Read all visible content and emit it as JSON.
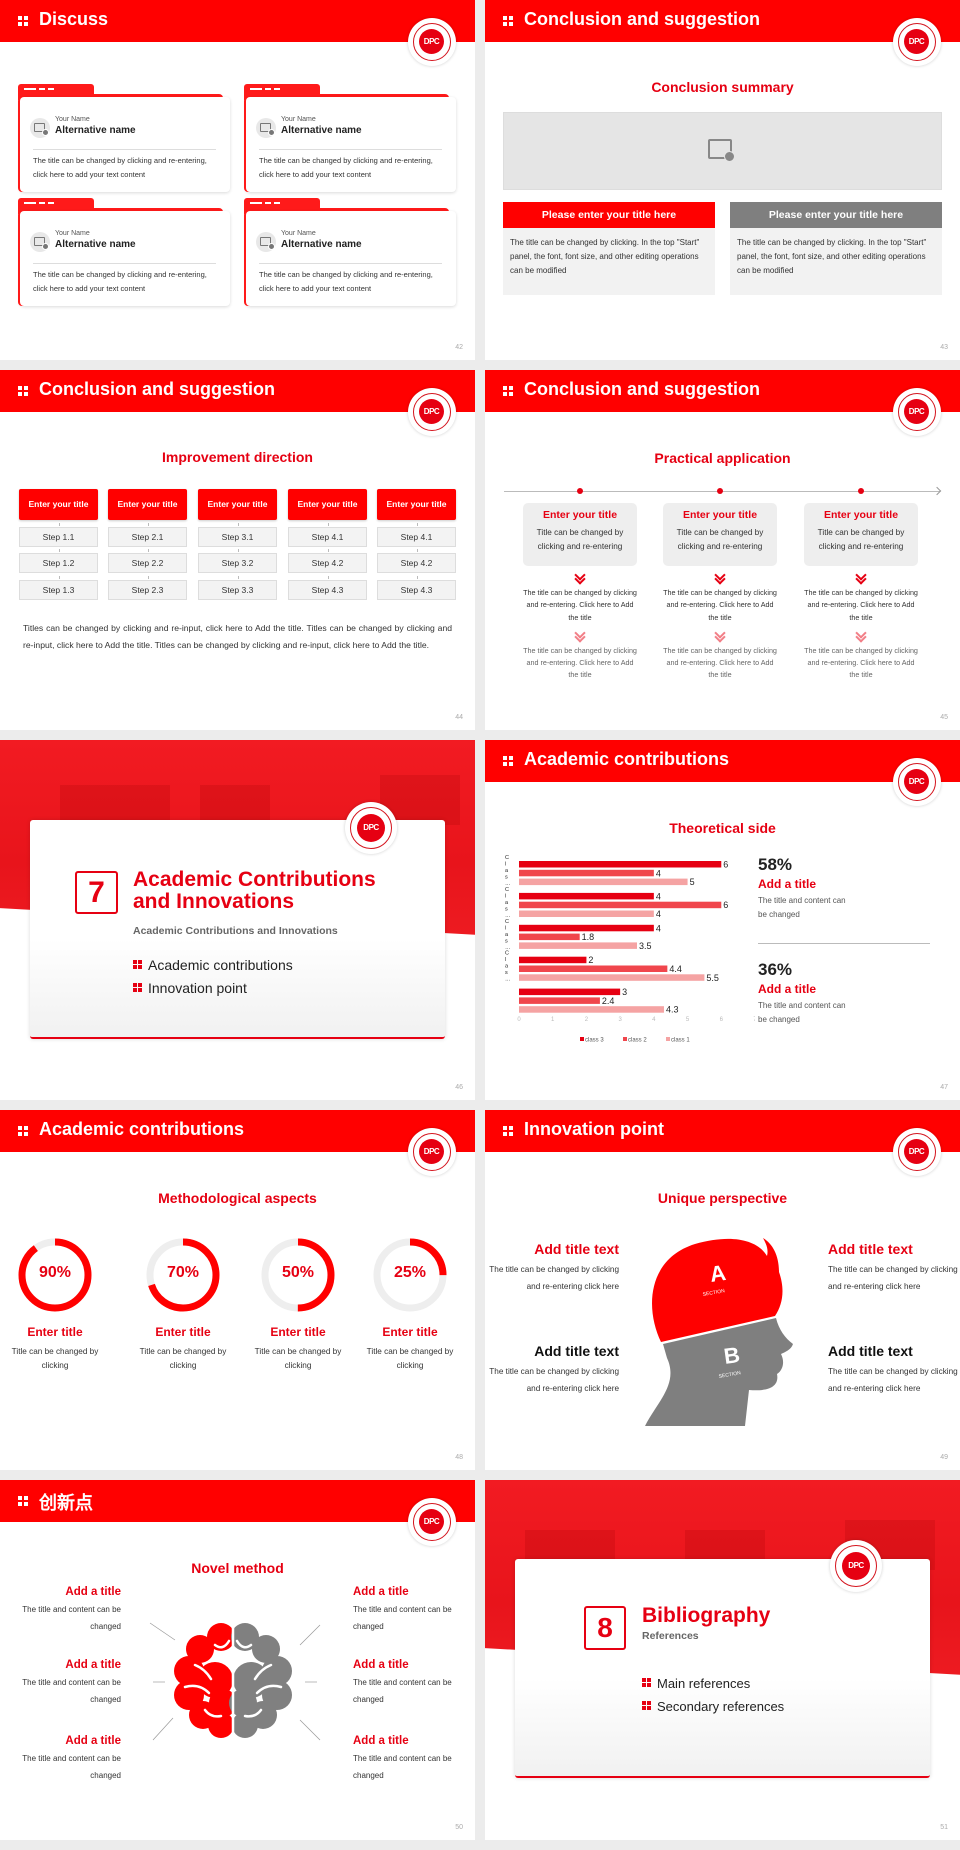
{
  "colors": {
    "accent": "#ff0000",
    "accent_dark": "#e60012",
    "gray": "#808080",
    "background": "#ececec"
  },
  "logo": {
    "text": "DPC",
    "ring_text": "DONG PUSAN COLLEGE"
  },
  "slides": [
    {
      "page": "42",
      "title": "Discuss",
      "cards": [
        {
          "label": "Your Name",
          "name": "Alternative name",
          "text": "The title can be changed by clicking and re-entering, click here to add your text content"
        },
        {
          "label": "Your Name",
          "name": "Alternative name",
          "text": "The title can be changed by clicking and re-entering, click here to add your text content"
        },
        {
          "label": "Your Name",
          "name": "Alternative name",
          "text": "The title can be changed by clicking and re-entering, click here to add your text content"
        },
        {
          "label": "Your Name",
          "name": "Alternative name",
          "text": "The title can be changed by clicking and re-entering, click here to add your text content"
        }
      ]
    },
    {
      "page": "43",
      "title": "Conclusion and suggestion",
      "heading": "Conclusion summary",
      "boxes": [
        {
          "title": "Please enter your title here",
          "text": "The title can be changed by clicking. In the top \"Start\" panel, the font, font size, and other editing operations can be modified"
        },
        {
          "title": "Please enter your title here",
          "text": "The title can be changed by clicking. In the top \"Start\" panel, the font, font size, and other editing operations can be modified"
        }
      ]
    },
    {
      "page": "44",
      "title": "Conclusion and suggestion",
      "heading": "Improvement direction",
      "columns": [
        {
          "title": "Enter your title",
          "steps": [
            "Step 1.1",
            "Step 1.2",
            "Step 1.3"
          ]
        },
        {
          "title": "Enter your title",
          "steps": [
            "Step 2.1",
            "Step 2.2",
            "Step 2.3"
          ]
        },
        {
          "title": "Enter your title",
          "steps": [
            "Step 3.1",
            "Step 3.2",
            "Step 3.3"
          ]
        },
        {
          "title": "Enter your title",
          "steps": [
            "Step 4.1",
            "Step 4.2",
            "Step 4.3"
          ]
        },
        {
          "title": "Enter your title",
          "steps": [
            "Step 4.1",
            "Step 4.2",
            "Step 4.3"
          ]
        }
      ],
      "paragraph": "Titles can be changed by clicking and re-input, click here to Add the title. Titles can be changed by clicking and re-input, click here to Add the title. Titles can be changed by clicking and re-input, click here to Add the title."
    },
    {
      "page": "45",
      "title": "Conclusion and suggestion",
      "heading": "Practical application",
      "columns": [
        {
          "title": "Enter your title",
          "desc": "Title can be changed by clicking and re-entering",
          "text1": "The title can be changed by clicking and re-entering. Click here to Add the title",
          "text2": "The title can be changed by clicking and re-entering. Click here to Add the title"
        },
        {
          "title": "Enter your title",
          "desc": "Title can be changed by clicking and re-entering",
          "text1": "The title can be changed by clicking and re-entering. Click here to Add the title",
          "text2": "The title can be changed by clicking and re-entering. Click here to Add the title"
        },
        {
          "title": "Enter your title",
          "desc": "Title can be changed by clicking and re-entering",
          "text1": "The title can be changed by clicking and re-entering. Click here to Add the title",
          "text2": "The title can be changed by clicking and re-entering. Click here to Add the title"
        }
      ]
    },
    {
      "page": "46",
      "number": "7",
      "title_line1": "Academic Contributions",
      "title_line2": "and Innovations",
      "subtitle": "Academic Contributions and Innovations",
      "bullets": [
        "Academic contributions",
        "Innovation point"
      ]
    },
    {
      "page": "47",
      "title": "Academic contributions",
      "heading": "Theoretical side",
      "stats": [
        {
          "value": "58%",
          "title": "Add a title",
          "text": "The title and content can be changed"
        },
        {
          "value": "36%",
          "title": "Add a title",
          "text": "The title and content can be changed"
        }
      ]
    },
    {
      "page": "48",
      "title": "Academic contributions",
      "heading": "Methodological aspects",
      "rings": [
        {
          "percent": 90,
          "label": "90%",
          "title": "Enter title",
          "text": "Title can be changed by clicking"
        },
        {
          "percent": 70,
          "label": "70%",
          "title": "Enter title",
          "text": "Title can be changed by clicking"
        },
        {
          "percent": 50,
          "label": "50%",
          "title": "Enter title",
          "text": "Title can be changed by clicking"
        },
        {
          "percent": 25,
          "label": "25%",
          "title": "Enter title",
          "text": "Title can be changed by clicking"
        }
      ]
    },
    {
      "page": "49",
      "title": "Innovation point",
      "heading": "Unique perspective",
      "head_labels": {
        "a": "A",
        "a_sub": "SECTION",
        "b": "B",
        "b_sub": "SECTION"
      },
      "items": [
        {
          "title": "Add title text",
          "text": "The title can be changed by clicking and re-entering click here"
        },
        {
          "title": "Add title text",
          "text": "The title can be changed by clicking and re-entering click here"
        },
        {
          "title": "Add title text",
          "text": "The title can be changed by clicking and re-entering click here"
        },
        {
          "title": "Add title text",
          "text": "The title can be changed by clicking and re-entering click here"
        }
      ]
    },
    {
      "page": "50",
      "title": "创新点",
      "heading": "Novel method",
      "items": [
        {
          "title": "Add a title",
          "text": "The title and content can be changed"
        },
        {
          "title": "Add a title",
          "text": "The title and content can be changed"
        },
        {
          "title": "Add a title",
          "text": "The title and content can be changed"
        },
        {
          "title": "Add a title",
          "text": "The title and content can be changed"
        },
        {
          "title": "Add a title",
          "text": "The title and content can be changed"
        },
        {
          "title": "Add a title",
          "text": "The title and content can be changed"
        }
      ]
    },
    {
      "page": "51",
      "number": "8",
      "title": "Bibliography",
      "subtitle": "References",
      "bullets": [
        "Main references",
        "Secondary references"
      ]
    }
  ],
  "chart_data": {
    "type": "bar",
    "orientation": "horizontal",
    "categories": [
      "Clas…",
      "Clas…",
      "Clas…",
      "Clas…",
      ""
    ],
    "series": [
      {
        "name": "class 3",
        "color": "#e60012",
        "values": [
          6,
          4,
          4,
          2,
          3
        ]
      },
      {
        "name": "class 2",
        "color": "#f0464c",
        "values": [
          4,
          6,
          1.8,
          4.4,
          2.4
        ]
      },
      {
        "name": "class 1",
        "color": "#f5a3a3",
        "values": [
          5,
          4,
          3.5,
          5.5,
          4.3
        ]
      }
    ],
    "xlim": [
      0,
      7
    ],
    "xticks": [
      "0",
      "1",
      "2",
      "3",
      "4",
      "5",
      "6",
      "7"
    ],
    "legend": "bottom",
    "grid": false,
    "data_labels": true
  }
}
